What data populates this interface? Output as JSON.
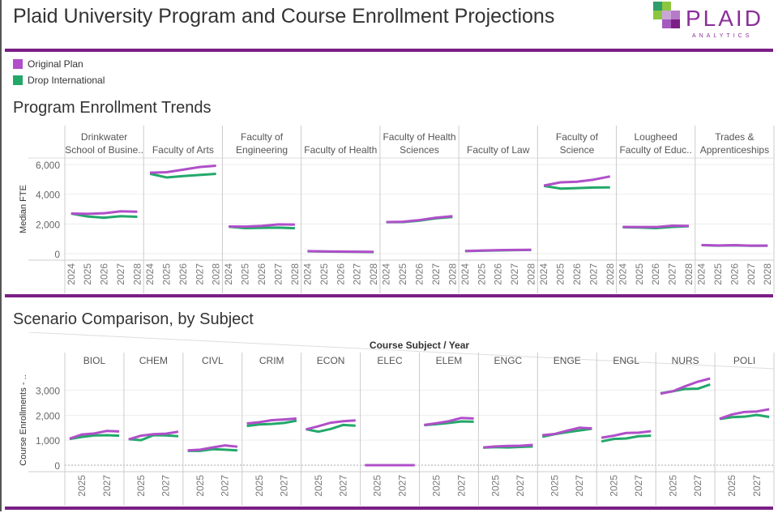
{
  "header": {
    "title": "Plaid University Program and Course Enrollment Projections",
    "logo": {
      "word": "PLAID",
      "sub": "ANALYTICS"
    }
  },
  "legend": [
    {
      "label": "Original Plan",
      "color": "#b04fc9"
    },
    {
      "label": "Drop International",
      "color": "#23a86a"
    }
  ],
  "program_section": {
    "title": "Program Enrollment Trends"
  },
  "subject_section": {
    "title": "Scenario Comparison, by Subject"
  },
  "chart_data": [
    {
      "type": "line",
      "ylabel": "Median FTE",
      "ylim": [
        0,
        6000
      ],
      "yticks": [
        0,
        2000,
        4000,
        6000
      ],
      "yticklabels": [
        "0",
        "2,000",
        "4,000",
        "6,000"
      ],
      "x": [
        2024,
        2025,
        2026,
        2027,
        2028
      ],
      "xticklabels": [
        "2024",
        "2025",
        "2026",
        "2027",
        "2028"
      ],
      "grid": true,
      "series_names": [
        "Original Plan",
        "Drop International"
      ],
      "panels": [
        {
          "name": [
            "Drinkwater",
            "School of Busine.."
          ],
          "series": [
            [
              2700,
              2680,
              2720,
              2850,
              2820
            ],
            [
              2700,
              2500,
              2420,
              2520,
              2480
            ]
          ]
        },
        {
          "name": [
            "",
            "Faculty of Arts"
          ],
          "series": [
            [
              5450,
              5480,
              5650,
              5830,
              5920
            ],
            [
              5380,
              5130,
              5220,
              5300,
              5370
            ]
          ]
        },
        {
          "name": [
            "Faculty of",
            "Engineering"
          ],
          "series": [
            [
              1830,
              1820,
              1870,
              1970,
              1960
            ],
            [
              1810,
              1720,
              1740,
              1750,
              1710
            ]
          ]
        },
        {
          "name": [
            "",
            "Faculty of Health"
          ],
          "series": [
            [
              170,
              150,
              140,
              130,
              120
            ],
            [
              160,
              140,
              130,
              120,
              110
            ]
          ]
        },
        {
          "name": [
            "Faculty of Health",
            "Sciences"
          ],
          "series": [
            [
              2130,
              2150,
              2260,
              2420,
              2520
            ],
            [
              2120,
              2130,
              2220,
              2380,
              2470
            ]
          ]
        },
        {
          "name": [
            "",
            "Faculty of Law"
          ],
          "series": [
            [
              180,
              210,
              240,
              250,
              260
            ],
            [
              170,
              200,
              220,
              240,
              250
            ]
          ]
        },
        {
          "name": [
            "Faculty of",
            "Science"
          ],
          "series": [
            [
              4580,
              4800,
              4840,
              4980,
              5200
            ],
            [
              4560,
              4380,
              4410,
              4450,
              4460
            ]
          ]
        },
        {
          "name": [
            "Lougheed",
            "Faculty of Educ.."
          ],
          "series": [
            [
              1800,
              1790,
              1790,
              1880,
              1870
            ],
            [
              1780,
              1760,
              1720,
              1800,
              1850
            ]
          ]
        },
        {
          "name": [
            "Trades &",
            "Apprenticeships"
          ],
          "series": [
            [
              580,
              550,
              570,
              540,
              540
            ],
            [
              570,
              540,
              560,
              530,
              540
            ]
          ]
        }
      ]
    },
    {
      "type": "line",
      "title": "Course Subject  /  Year",
      "ylabel": "Course Enrollments - ..",
      "ylim": [
        0,
        3600
      ],
      "yticks": [
        0,
        1000,
        2000,
        3000
      ],
      "yticklabels": [
        "0",
        "1,000",
        "2,000",
        "3,000"
      ],
      "x": [
        2024,
        2025,
        2026,
        2027,
        2028
      ],
      "xticklabels": [
        "2025",
        "2027"
      ],
      "grid": true,
      "series_names": [
        "Original Plan",
        "Drop International"
      ],
      "panels": [
        {
          "name": "BIOL",
          "series": [
            [
              1060,
              1230,
              1270,
              1370,
              1350
            ],
            [
              1050,
              1130,
              1190,
              1200,
              1180
            ]
          ]
        },
        {
          "name": "CHEM",
          "series": [
            [
              1030,
              1180,
              1240,
              1260,
              1340
            ],
            [
              1040,
              1000,
              1200,
              1190,
              1160
            ]
          ]
        },
        {
          "name": "CIVL",
          "series": [
            [
              590,
              620,
              710,
              790,
              740
            ],
            [
              570,
              570,
              640,
              620,
              590
            ]
          ]
        },
        {
          "name": "CRIM",
          "series": [
            [
              1670,
              1720,
              1800,
              1830,
              1870
            ],
            [
              1570,
              1630,
              1650,
              1690,
              1780
            ]
          ]
        },
        {
          "name": "ECON",
          "series": [
            [
              1430,
              1560,
              1700,
              1760,
              1790
            ],
            [
              1440,
              1340,
              1450,
              1610,
              1580
            ]
          ]
        },
        {
          "name": "ELEC",
          "series": [
            [
              0,
              0,
              0,
              0,
              0
            ],
            [
              0,
              0,
              0,
              0,
              0
            ]
          ]
        },
        {
          "name": "ELEM",
          "series": [
            [
              1610,
              1680,
              1760,
              1890,
              1870
            ],
            [
              1600,
              1640,
              1690,
              1750,
              1740
            ]
          ]
        },
        {
          "name": "ENGC",
          "series": [
            [
              710,
              750,
              770,
              780,
              810
            ],
            [
              700,
              720,
              710,
              730,
              750
            ]
          ]
        },
        {
          "name": "ENGE",
          "series": [
            [
              1200,
              1250,
              1380,
              1500,
              1470
            ],
            [
              1140,
              1240,
              1320,
              1390,
              1460
            ]
          ]
        },
        {
          "name": "ENGL",
          "series": [
            [
              1100,
              1180,
              1290,
              1300,
              1360
            ],
            [
              950,
              1050,
              1070,
              1160,
              1180
            ]
          ]
        },
        {
          "name": "NURS",
          "series": [
            [
              2860,
              2960,
              3160,
              3340,
              3470
            ],
            [
              2880,
              2960,
              3050,
              3060,
              3230
            ]
          ]
        },
        {
          "name": "POLI",
          "series": [
            [
              1860,
              2030,
              2130,
              2150,
              2240
            ],
            [
              1850,
              1920,
              1940,
              2010,
              1930
            ]
          ]
        }
      ]
    }
  ]
}
